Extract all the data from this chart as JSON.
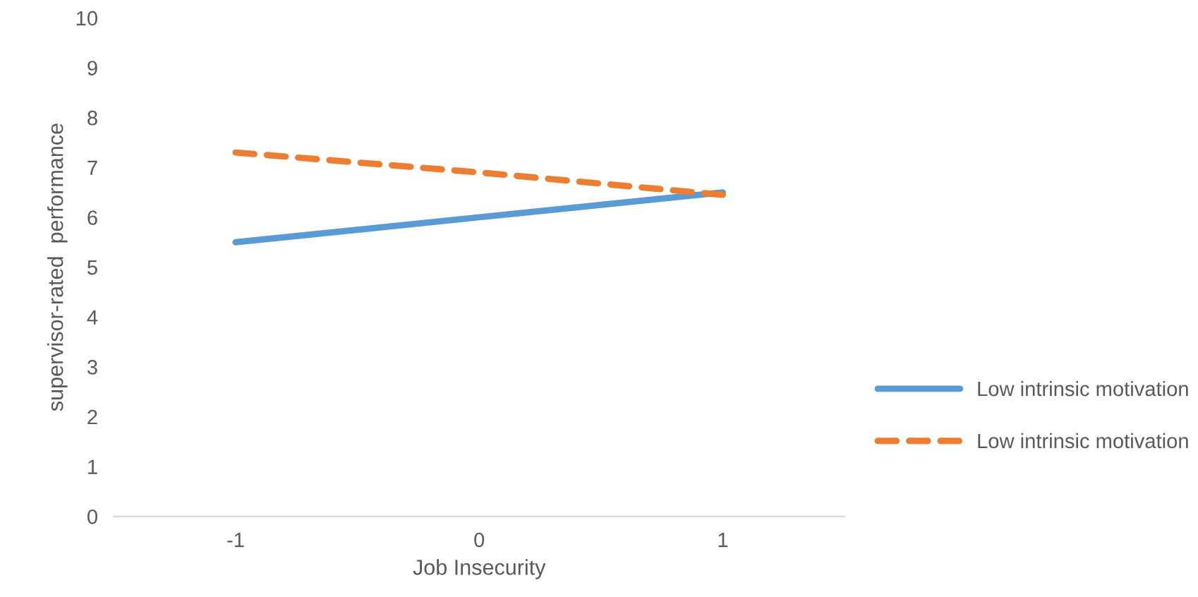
{
  "chart_data": {
    "type": "line",
    "xlabel": "Job Insecurity",
    "ylabel": "supervisor-rated  performance",
    "categories": [
      "-1",
      "0",
      "1"
    ],
    "series": [
      {
        "name": "Low intrinsic motivation",
        "color": "#5b9bd5",
        "line_style": "solid",
        "values": [
          5.5,
          6.0,
          6.5
        ]
      },
      {
        "name": "Low intrinsic motivation",
        "color": "#ed7d31",
        "line_style": "dashed",
        "values": [
          7.3,
          6.9,
          6.45
        ]
      }
    ],
    "ylim": [
      0,
      10
    ],
    "yticks": [
      0,
      1,
      2,
      3,
      4,
      5,
      6,
      7,
      8,
      9,
      10
    ],
    "grid": false,
    "legend": "right",
    "marker": "none"
  }
}
